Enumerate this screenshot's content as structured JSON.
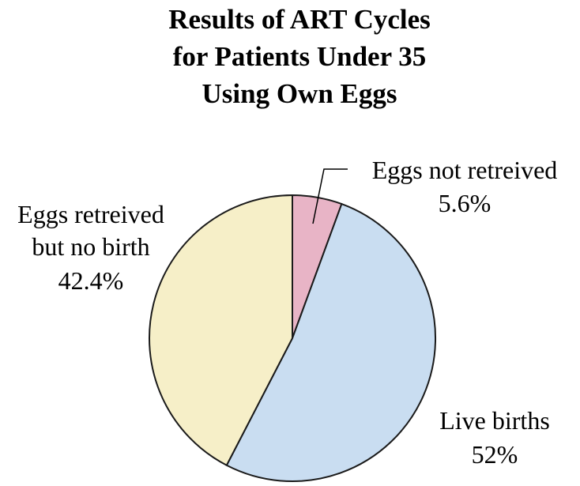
{
  "chart_data": {
    "type": "pie",
    "title_lines": [
      "Results of ART Cycles",
      "for Patients Under 35",
      "Using Own Eggs"
    ],
    "slices": [
      {
        "label_lines": [
          "Eggs not retreived"
        ],
        "value_text": "5.6%",
        "value": 5.6,
        "color": "#E8B4C6"
      },
      {
        "label_lines": [
          "Live births"
        ],
        "value_text": "52%",
        "value": 52.0,
        "color": "#C9DDF1"
      },
      {
        "label_lines": [
          "Eggs retreived",
          "but no birth"
        ],
        "value_text": "42.4%",
        "value": 42.4,
        "color": "#F6EFC8"
      }
    ],
    "start_angle_deg": 0,
    "direction": "clockwise"
  }
}
